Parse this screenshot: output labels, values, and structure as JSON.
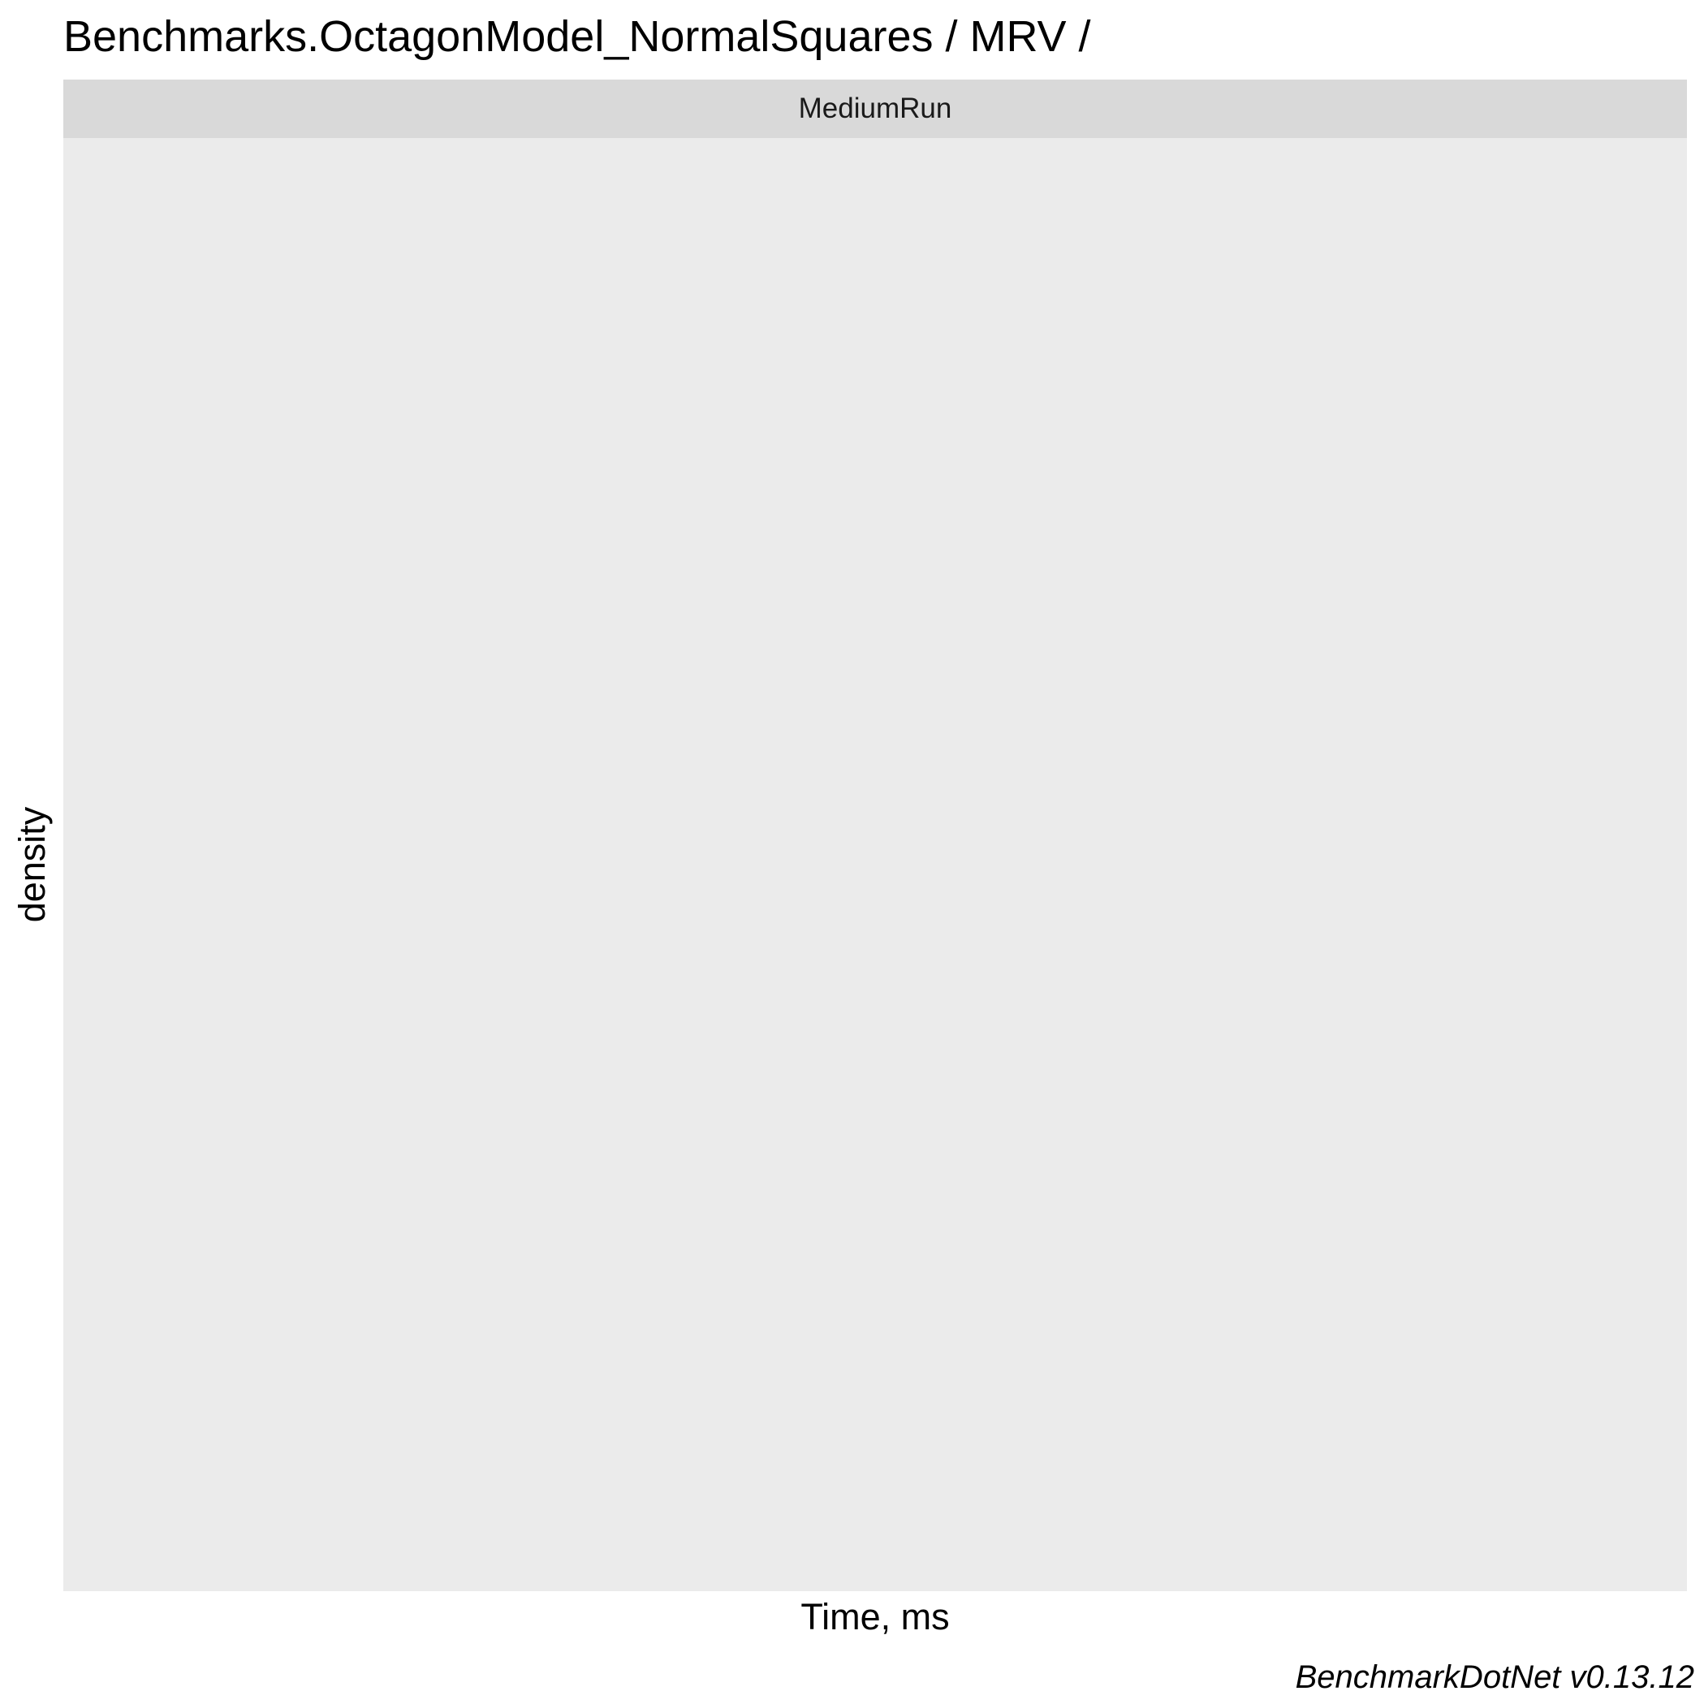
{
  "chart_data": {
    "type": "area",
    "title": "Benchmarks.OctagonModel_NormalSquares / MRV /",
    "facets": [
      "MediumRun"
    ],
    "xlabel": "Time, ms",
    "ylabel": "density",
    "series": [],
    "caption": "BenchmarkDotNet v0.13.12",
    "grid": false,
    "colors": {
      "panel_background": "#ebebeb",
      "strip_background": "#d9d9d9"
    }
  }
}
